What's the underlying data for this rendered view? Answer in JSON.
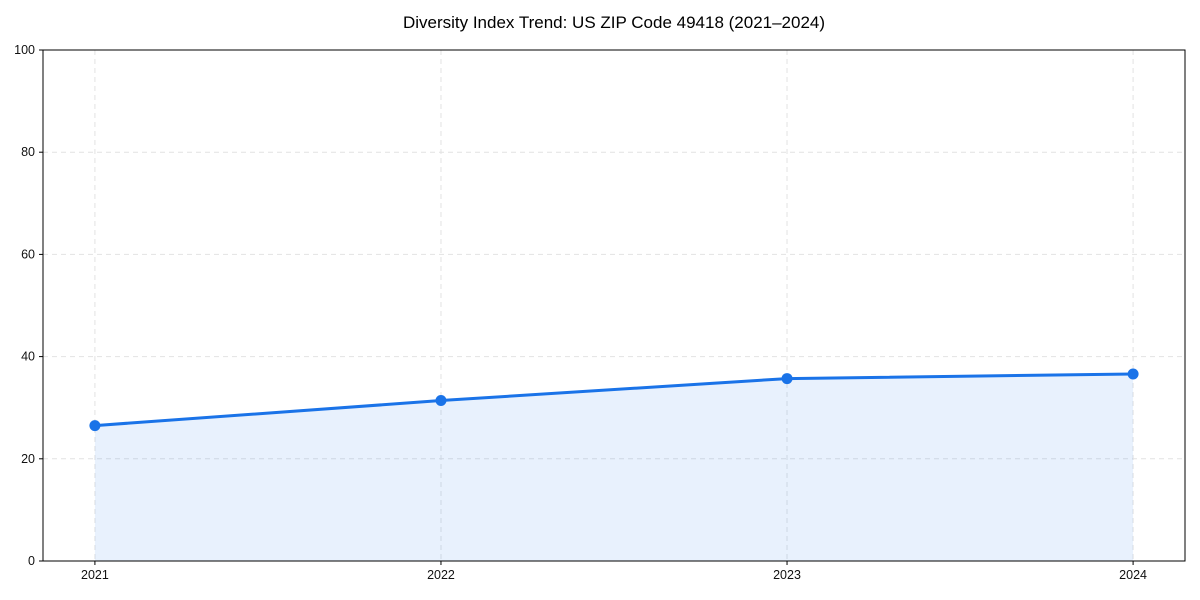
{
  "chart_data": {
    "type": "line",
    "title": "Diversity Index Trend: US ZIP Code 49418 (2021–2024)",
    "x": [
      2021,
      2022,
      2023,
      2024
    ],
    "x_tick_labels": [
      "2021",
      "2022",
      "2023",
      "2024"
    ],
    "series": [
      {
        "name": "Diversity Index",
        "values": [
          26.5,
          31.4,
          35.7,
          36.6
        ],
        "color": "#1a73e8",
        "marker": "circle",
        "area_fill": true,
        "fill_opacity": 0.1
      }
    ],
    "xlabel": "",
    "ylabel": "",
    "ylim": [
      0,
      100
    ],
    "yticks": [
      0,
      20,
      40,
      60,
      80,
      100
    ],
    "x_margin_frac": 0.05,
    "grid": true,
    "grid_style": "dashed",
    "grid_color": "#e2e2e2",
    "axis_color": "#000000",
    "tick_label_color": "#111111",
    "title_color": "#000000",
    "legend_position": "none"
  }
}
